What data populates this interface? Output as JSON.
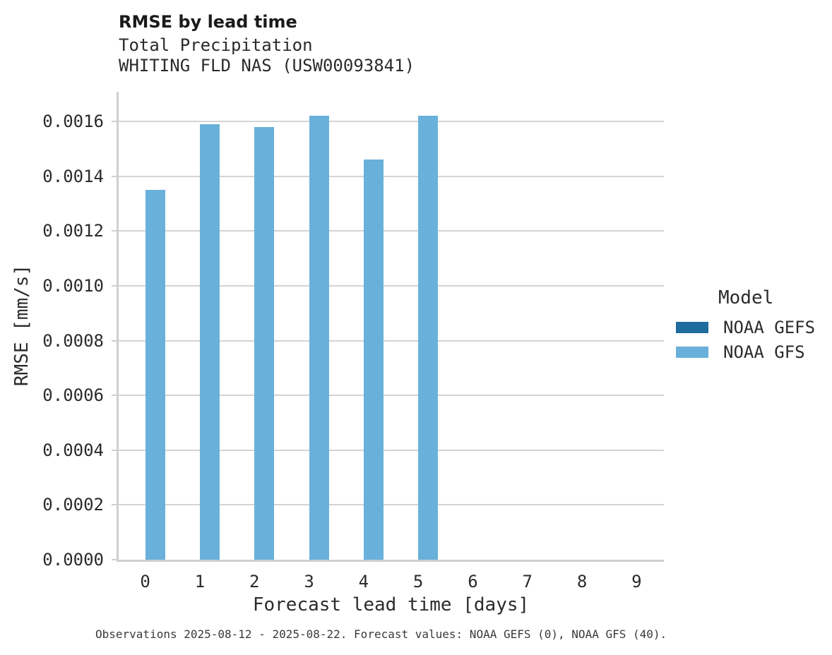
{
  "chart_data": {
    "type": "bar",
    "title": "RMSE by lead time",
    "subtitle_lines": [
      "Total Precipitation",
      "WHITING FLD NAS (USW00093841)"
    ],
    "xlabel": "Forecast lead time [days]",
    "ylabel": "RMSE [mm/s]",
    "categories": [
      "0",
      "1",
      "2",
      "3",
      "4",
      "5",
      "6",
      "7",
      "8",
      "9"
    ],
    "series": [
      {
        "name": "NOAA GEFS",
        "color": "#1f6c9e",
        "values": [
          null,
          null,
          null,
          null,
          null,
          null,
          null,
          null,
          null,
          null
        ]
      },
      {
        "name": "NOAA GFS",
        "color": "#69b1da",
        "values": [
          0.00135,
          0.00159,
          0.00158,
          0.00162,
          0.00146,
          0.00162,
          null,
          null,
          null,
          null
        ]
      }
    ],
    "ylim": [
      0.0,
      0.001712
    ],
    "yticks": {
      "values": [
        0.0,
        0.0002,
        0.0004,
        0.0006,
        0.0008,
        0.001,
        0.0012,
        0.0014,
        0.0016
      ],
      "labels": [
        "0.0000",
        "0.0002",
        "0.0004",
        "0.0006",
        "0.0008",
        "0.0010",
        "0.0012",
        "0.0014",
        "0.0016"
      ]
    },
    "grid": "horizontal",
    "legend": {
      "title": "Model",
      "position": "right"
    },
    "caption": "Observations 2025-08-12 - 2025-08-22. Forecast values: NOAA GEFS (0), NOAA GFS (40).",
    "colors": {
      "grid": "#d4d4d4",
      "spine": "#cfcfcf",
      "text": "#2b2b2b"
    }
  }
}
